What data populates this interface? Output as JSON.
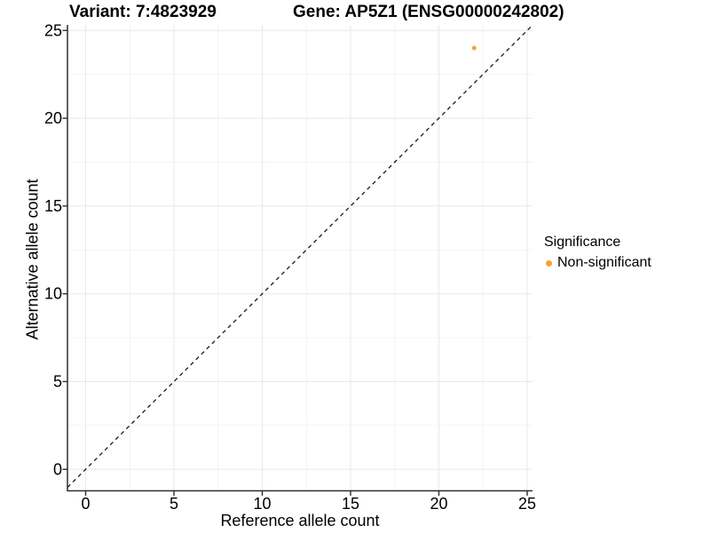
{
  "titles": {
    "variant": "Variant: 7:4823929",
    "gene": "Gene: AP5Z1 (ENSG00000242802)"
  },
  "axes": {
    "x_label": "Reference allele count",
    "y_label": "Alternative allele count"
  },
  "legend": {
    "title": "Significance",
    "items": [
      {
        "label": "Non-significant",
        "color": "#F9A136",
        "marker": "dot"
      }
    ]
  },
  "chart_data": {
    "type": "scatter",
    "title": "Variant: 7:4823929   Gene: AP5Z1 (ENSG00000242802)",
    "xlabel": "Reference allele count",
    "ylabel": "Alternative allele count",
    "xlim": [
      -1.05,
      25.3
    ],
    "ylim": [
      -1.25,
      25.3
    ],
    "x_ticks": [
      0,
      5,
      10,
      15,
      20,
      25
    ],
    "y_ticks": [
      0,
      5,
      10,
      15,
      20,
      25
    ],
    "grid": "major+minor",
    "legend_position": "right",
    "series": [
      {
        "name": "Non-significant",
        "color": "#F9A136",
        "points": [
          {
            "x": 22,
            "y": 24
          }
        ]
      }
    ],
    "reference_line": {
      "slope": 1,
      "intercept": 0,
      "style": "dashed",
      "color": "#1a1a1a"
    }
  },
  "colors": {
    "point_orange": "#F9A136",
    "grid_major": "#E8E8E8",
    "grid_minor": "#F3F3F3",
    "axis_line": "#2e2e2e",
    "tick_text": "#000000"
  }
}
